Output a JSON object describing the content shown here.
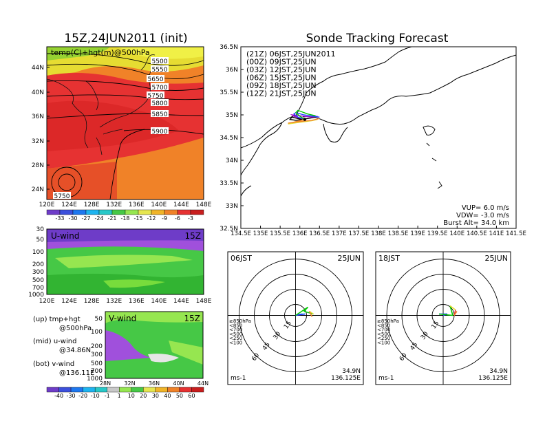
{
  "map": {
    "title": "15Z,24JUN2011 (init)",
    "label": "temp(C)+hgt(m)@500hPa",
    "lat_ticks": [
      "44N",
      "40N",
      "36N",
      "32N",
      "28N",
      "24N"
    ],
    "lon_ticks": [
      "120E",
      "124E",
      "128E",
      "132E",
      "136E",
      "140E",
      "144E",
      "148E"
    ],
    "contour_labels": [
      "5500",
      "5550",
      "5650",
      "5700",
      "5750",
      "5800",
      "5850",
      "5900",
      "5750"
    ],
    "colorbar_ticks": [
      "-33",
      "-30",
      "-27",
      "-24",
      "-21",
      "-18",
      "-15",
      "-12",
      "-9",
      "-6",
      "-3"
    ]
  },
  "uwind": {
    "label": "U-wind",
    "time": "15Z",
    "y_ticks": [
      "30",
      "50",
      "100",
      "200",
      "300",
      "500",
      "700",
      "1000"
    ],
    "x_ticks": [
      "120E",
      "124E",
      "128E",
      "132E",
      "136E",
      "140E",
      "144E",
      "148E"
    ]
  },
  "vwind": {
    "label": "V-wind",
    "time": "15Z",
    "y_ticks": [
      "50",
      "100",
      "200",
      "300",
      "500",
      "700",
      "1000"
    ],
    "x_ticks": [
      "28N",
      "32N",
      "36N",
      "40N",
      "44N"
    ]
  },
  "notes": [
    "(up) tmp+hgt",
    "@500hPa",
    "(mid) u-wind",
    "@34.86N",
    "(bot) v-wind",
    "@136.11E"
  ],
  "wind_colorbar_ticks": [
    "-40",
    "-30",
    "-20",
    "-10",
    "-1",
    "1",
    "10",
    "20",
    "30",
    "40",
    "50",
    "60"
  ],
  "track": {
    "title": "Sonde Tracking Forecast",
    "lat_ticks": [
      "36.5N",
      "36N",
      "35.5N",
      "35N",
      "34.5N",
      "34N",
      "33.5N",
      "33N",
      "32.5N"
    ],
    "lon_ticks": [
      "134.5E",
      "135E",
      "135.5E",
      "136E",
      "136.5E",
      "137E",
      "137.5E",
      "138E",
      "138.5E",
      "139E",
      "139.5E",
      "140E",
      "140.5E",
      "141E",
      "141.5E"
    ],
    "legend": [
      {
        "text": "(21Z)  06JST,25JUN2011",
        "color": "#000000"
      },
      {
        "text": "(00Z)  09JST,25JUN",
        "color": "#a000c8"
      },
      {
        "text": "(03Z)  12JST,25JUN",
        "color": "#1e3cff"
      },
      {
        "text": "(06Z)  15JST,25JUN",
        "color": "#00c800"
      },
      {
        "text": "(09Z)  18JST,25JUN",
        "color": "#e6dc32"
      },
      {
        "text": "(12Z)  21JST,25JUN",
        "color": "#f08228"
      }
    ],
    "vup": "VUP=  6.0 m/s",
    "vdw": "VDW= -3.0 m/s",
    "burst": "Burst Alt= 34.0 km"
  },
  "hodo_left": {
    "time": "06JST",
    "date": "25JUN",
    "lat": "34.9N",
    "lon": "136.125E",
    "unit": "ms-1"
  },
  "hodo_right": {
    "time": "18JST",
    "date": "25JUN",
    "lat": "34.9N",
    "lon": "136.125E",
    "unit": "ms-1"
  },
  "hodo_rings": [
    "15",
    "30",
    "45",
    "60"
  ],
  "hodo_levels": [
    {
      "text": "≥850hPa",
      "color": "#e60000"
    },
    {
      "text": "<850",
      "color": "#f08228"
    },
    {
      "text": "<700",
      "color": "#e6dc32"
    },
    {
      "text": "<500",
      "color": "#00c800"
    },
    {
      "text": "<250",
      "color": "#00c8c8"
    },
    {
      "text": "<100",
      "color": "#1e3cff"
    }
  ],
  "chart_data": {
    "type": "line",
    "title": "Sonde Tracking Forecast",
    "xlabel": "",
    "ylabel": "",
    "xlim": [
      134.5,
      141.5
    ],
    "ylim": [
      32.5,
      36.5
    ],
    "release_point": {
      "lon": 136.125,
      "lat": 34.9
    },
    "series": [
      {
        "name": "(21Z) 06JST,25JUN2011",
        "x": [
          136.125,
          135.95,
          135.8,
          135.75,
          135.9,
          136.2,
          136.4
        ],
        "y": [
          34.9,
          34.92,
          34.95,
          34.9,
          34.88,
          34.92,
          34.95
        ]
      },
      {
        "name": "(00Z) 09JST,25JUN",
        "x": [
          136.125,
          136.0,
          135.85,
          135.8,
          136.0,
          136.3,
          136.45
        ],
        "y": [
          34.9,
          34.93,
          34.97,
          35.0,
          34.98,
          34.95,
          34.97
        ]
      },
      {
        "name": "(03Z) 12JST,25JUN",
        "x": [
          136.125,
          135.95,
          135.85,
          135.9,
          136.1,
          136.35,
          136.5
        ],
        "y": [
          34.9,
          34.95,
          35.02,
          35.05,
          35.0,
          34.97,
          34.95
        ]
      },
      {
        "name": "(06Z) 15JST,25JUN",
        "x": [
          136.125,
          136.0,
          135.9,
          135.95,
          136.2,
          136.4
        ],
        "y": [
          34.9,
          34.97,
          35.05,
          35.1,
          35.02,
          34.98
        ]
      },
      {
        "name": "(09Z) 18JST,25JUN",
        "x": [
          136.125,
          135.9,
          135.75,
          135.7,
          135.95,
          136.3,
          136.45
        ],
        "y": [
          34.9,
          34.85,
          34.82,
          34.8,
          34.83,
          34.87,
          34.9
        ]
      },
      {
        "name": "(12Z) 21JST,25JUN",
        "x": [
          136.125,
          135.95,
          135.8,
          135.7,
          135.95,
          136.3,
          136.5
        ],
        "y": [
          34.9,
          34.86,
          34.83,
          34.82,
          34.85,
          34.88,
          34.92
        ]
      }
    ]
  }
}
